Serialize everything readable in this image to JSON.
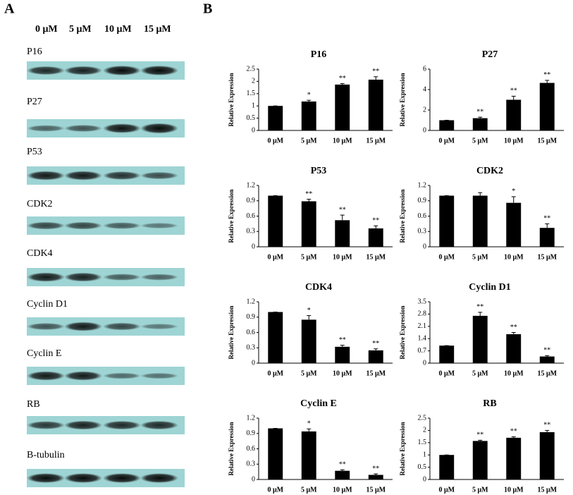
{
  "panel_a": {
    "label": "A",
    "concentrations": [
      "0 μM",
      "5 μM",
      "10 μM",
      "15 μM"
    ],
    "blots": [
      "P16",
      "P27",
      "P53",
      "CDK2",
      "CDK4",
      "Cyclin D1",
      "Cyclin E",
      "RB",
      "B-tubulin"
    ]
  },
  "panel_b": {
    "label": "B"
  },
  "chart_data": [
    {
      "type": "bar",
      "title": "P16",
      "y_label": "Relative Expression",
      "categories": [
        "0 μM",
        "5 μM",
        "10 μM",
        "15 μM"
      ],
      "values": [
        1,
        1.18,
        1.87,
        2.07
      ],
      "errors": [
        0,
        0.05,
        0.04,
        0.12
      ],
      "significance": [
        null,
        "*",
        "**",
        "**"
      ],
      "color": "#000000",
      "ylim": [
        0,
        2.5
      ],
      "yticks": [
        0,
        0.5,
        1,
        1.5,
        2,
        2.5
      ]
    },
    {
      "type": "bar",
      "title": "P27",
      "y_label": "Relative Expression",
      "categories": [
        "0 μM",
        "5 μM",
        "10 μM",
        "15 μM"
      ],
      "values": [
        1,
        1.2,
        3.0,
        4.65
      ],
      "errors": [
        0,
        0.1,
        0.35,
        0.25
      ],
      "significance": [
        null,
        "**",
        "**",
        "**"
      ],
      "color": "#000000",
      "ylim": [
        0,
        6
      ],
      "yticks": [
        0,
        2,
        4,
        6
      ]
    },
    {
      "type": "bar",
      "title": "P53",
      "y_label": "Relative Expression",
      "categories": [
        "0 μM",
        "5 μM",
        "10 μM",
        "15 μM"
      ],
      "values": [
        1,
        0.89,
        0.52,
        0.36
      ],
      "errors": [
        0,
        0.04,
        0.1,
        0.05
      ],
      "significance": [
        null,
        "**",
        "**",
        "**"
      ],
      "color": "#000000",
      "ylim": [
        0,
        1.2
      ],
      "yticks": [
        0,
        0.3,
        0.6,
        0.9,
        1.2
      ]
    },
    {
      "type": "bar",
      "title": "CDK2",
      "y_label": "Relative Expression",
      "categories": [
        "0 μM",
        "5 μM",
        "10 μM",
        "15 μM"
      ],
      "values": [
        1,
        1.0,
        0.86,
        0.37
      ],
      "errors": [
        0,
        0.06,
        0.12,
        0.08
      ],
      "significance": [
        null,
        null,
        "*",
        "**"
      ],
      "color": "#000000",
      "ylim": [
        0,
        1.2
      ],
      "yticks": [
        0,
        0.3,
        0.6,
        0.9,
        1.2
      ]
    },
    {
      "type": "bar",
      "title": "CDK4",
      "y_label": "Relative Expression",
      "categories": [
        "0 μM",
        "5 μM",
        "10 μM",
        "15 μM"
      ],
      "values": [
        1,
        0.85,
        0.32,
        0.25
      ],
      "errors": [
        0,
        0.08,
        0.03,
        0.03
      ],
      "significance": [
        null,
        "*",
        "**",
        "**"
      ],
      "color": "#000000",
      "ylim": [
        0,
        1.2
      ],
      "yticks": [
        0,
        0.3,
        0.6,
        0.9,
        1.2
      ]
    },
    {
      "type": "bar",
      "title": "Cyclin D1",
      "y_label": "Relative Expression",
      "categories": [
        "0 μM",
        "5 μM",
        "10 μM",
        "15 μM"
      ],
      "values": [
        1,
        2.7,
        1.65,
        0.38
      ],
      "errors": [
        0,
        0.2,
        0.1,
        0.05
      ],
      "significance": [
        null,
        "**",
        "**",
        "**"
      ],
      "color": "#000000",
      "ylim": [
        0,
        3.5
      ],
      "yticks": [
        0,
        0.7,
        1.4,
        2.1,
        2.8,
        3.5
      ]
    },
    {
      "type": "bar",
      "title": "Cyclin E",
      "y_label": "Relative Expression",
      "categories": [
        "0 μM",
        "5 μM",
        "10 μM",
        "15 μM"
      ],
      "values": [
        1,
        0.94,
        0.17,
        0.09
      ],
      "errors": [
        0,
        0.05,
        0.02,
        0.02
      ],
      "significance": [
        null,
        "*",
        "**",
        "**"
      ],
      "color": "#000000",
      "ylim": [
        0,
        1.2
      ],
      "yticks": [
        0,
        0.3,
        0.6,
        0.9,
        1.2
      ]
    },
    {
      "type": "bar",
      "title": "RB",
      "y_label": "Relative Expression",
      "categories": [
        "0 μM",
        "5 μM",
        "10 μM",
        "15 μM"
      ],
      "values": [
        1,
        1.57,
        1.7,
        1.93
      ],
      "errors": [
        0,
        0.03,
        0.04,
        0.07
      ],
      "significance": [
        null,
        "**",
        "**",
        "**"
      ],
      "color": "#000000",
      "ylim": [
        0,
        2.5
      ],
      "yticks": [
        0,
        0.5,
        1,
        1.5,
        2,
        2.5
      ]
    }
  ]
}
